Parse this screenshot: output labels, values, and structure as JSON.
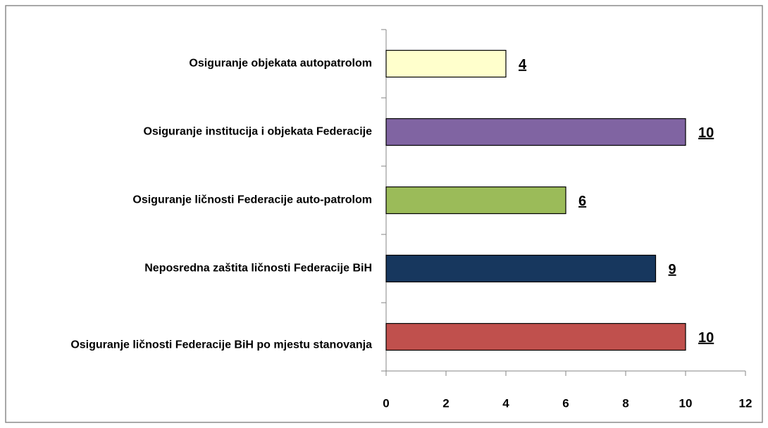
{
  "chart_data": {
    "type": "bar",
    "orientation": "horizontal",
    "categories": [
      "Osiguranje objekata autopatrolom",
      "Osiguranje institucija i objekata Federacije",
      "Osiguranje ličnosti Federacije auto-patrolom",
      "Neposredna zaštita ličnosti Federacije BiH",
      "Osiguranje ličnosti Federacije BiH po mjestu stanovanja"
    ],
    "values": [
      4,
      10,
      6,
      9,
      10
    ],
    "colors": [
      "#ffffcc",
      "#8064a2",
      "#9bbb59",
      "#17375e",
      "#c0504d"
    ],
    "xlim": [
      0,
      12
    ],
    "xticks": [
      0,
      2,
      4,
      6,
      8,
      10,
      12
    ],
    "grid": false
  }
}
